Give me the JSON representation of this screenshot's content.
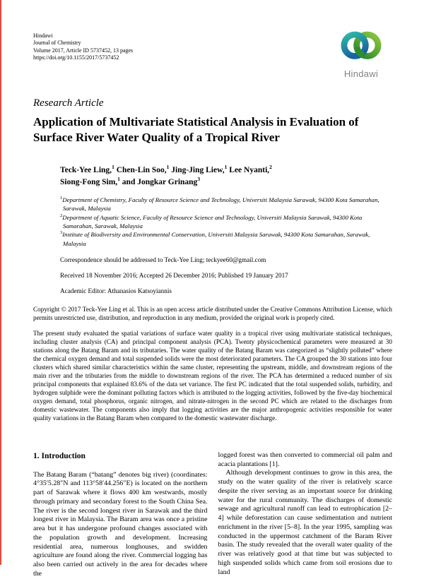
{
  "page": {
    "accent_red": "#e8483f"
  },
  "header": {
    "publisher": "Hindawi",
    "journal": "Journal of Chemistry",
    "volume_line": "Volume 2017, Article ID 5737452, 13 pages",
    "doi_line": "https://doi.org/10.1155/2017/5737452",
    "logo": {
      "wordmark": "Hindawi",
      "wordmark_color": "#808285",
      "ring_left_top": "#31b7a7",
      "ring_left_bottom": "#1565a0",
      "ring_right_top": "#8dc63f",
      "ring_right_bottom": "#2f8c2f"
    }
  },
  "article": {
    "type_label": "Research Article",
    "title_lines": [
      "Application of Multivariate Statistical Analysis in Evaluation of",
      "Surface River Water Quality of a Tropical River"
    ],
    "authors": [
      {
        "name": "Teck-Yee Ling,",
        "sup": "1",
        "br": false
      },
      {
        "name": "Chen-Lin Soo,",
        "sup": "1",
        "br": false
      },
      {
        "name": "Jing-Jing Liew,",
        "sup": "1",
        "br": false
      },
      {
        "name": "Lee Nyanti,",
        "sup": "2",
        "br": true
      },
      {
        "name": "Siong-Fong Sim,",
        "sup": "1",
        "br": false
      },
      {
        "name": "and Jongkar Grinang",
        "sup": "3",
        "br": false
      }
    ],
    "affiliations": [
      {
        "sup": "1",
        "text": "Department of Chemistry, Faculty of Resource Science and Technology, Universiti Malaysia Sarawak, 94300 Kota Samarahan, Sarawak, Malaysia"
      },
      {
        "sup": "2",
        "text": "Department of Aquatic Science, Faculty of Resource Science and Technology, Universiti Malaysia Sarawak, 94300 Kota Samarahan, Sarawak, Malaysia"
      },
      {
        "sup": "3",
        "text": "Institute of Biodiversity and Environmental Conservation, Universiti Malaysia Sarawak, 94300 Kota Samarahan, Sarawak, Malaysia"
      }
    ],
    "correspondence": "Correspondence should be addressed to Teck-Yee Ling; teckyee60@gmail.com",
    "history": "Received 18 November 2016; Accepted 26 December 2016; Published 19 January 2017",
    "editor": "Academic Editor: Athanasios Katsoyiannis",
    "copyright": "Copyright © 2017 Teck-Yee Ling et al. This is an open access article distributed under the Creative Commons Attribution License, which permits unrestricted use, distribution, and reproduction in any medium, provided the original work is properly cited.",
    "abstract": "The present study evaluated the spatial variations of surface water quality in a tropical river using multivariate statistical techniques, including cluster analysis (CA) and principal component analysis (PCA). Twenty physicochemical parameters were measured at 30 stations along the Batang Baram and its tributaries. The water quality of the Batang Baram was categorized as “slightly polluted” where the chemical oxygen demand and total suspended solids were the most deteriorated parameters. The CA grouped the 30 stations into four clusters which shared similar characteristics within the same cluster, representing the upstream, middle, and downstream regions of the main river and the tributaries from the middle to downstream regions of the river. The PCA has determined a reduced number of six principal components that explained 83.6% of the data set variance. The first PC indicated that the total suspended solids, turbidity, and hydrogen sulphide were the dominant polluting factors which is attributed to the logging activities, followed by the five-day biochemical oxygen demand, total phosphorus, organic nitrogen, and nitrate-nitrogen in the second PC which are related to the discharges from domestic wastewater. The components also imply that logging activities are the major anthropogenic activities responsible for water quality variations in the Batang Baram when compared to the domestic wastewater discharge."
  },
  "body": {
    "section1_heading": "1. Introduction",
    "col_left_p1": "The Batang Baram (“batang” denotes big river) (coordinates: 4°35′5.28″N and 113°58′44.256″E) is located on the northern part of Sarawak where it flows 400 km westwards, mostly through primary and secondary forest to the South China Sea. The river is the second longest river in Sarawak and the third longest river in Malaysia. The Baram area was once a pristine area but it has undergone profound changes associated with the population growth and development. Increasing residential area, numerous longhouses, and swidden agriculture are found along the river. Commercial logging has also been carried out actively in the area for decades where the",
    "col_right_p1": "logged forest was then converted to commercial oil palm and acacia plantations [1].",
    "col_right_p2": "Although development continues to grow in this area, the study on the water quality of the river is relatively scarce despite the river serving as an important source for drinking water for the rural community. The discharges of domestic sewage and agricultural runoff can lead to eutrophication [2–4] while deforestation can cause sedimentation and nutrient enrichment in the river [5–8]. In the year 1995, sampling was conducted in the uppermost catchment of the Baram River basin. The study revealed that the overall water quality of the river was relatively good at that time but was subjected to high suspended solids which came from soil erosions due to land"
  }
}
